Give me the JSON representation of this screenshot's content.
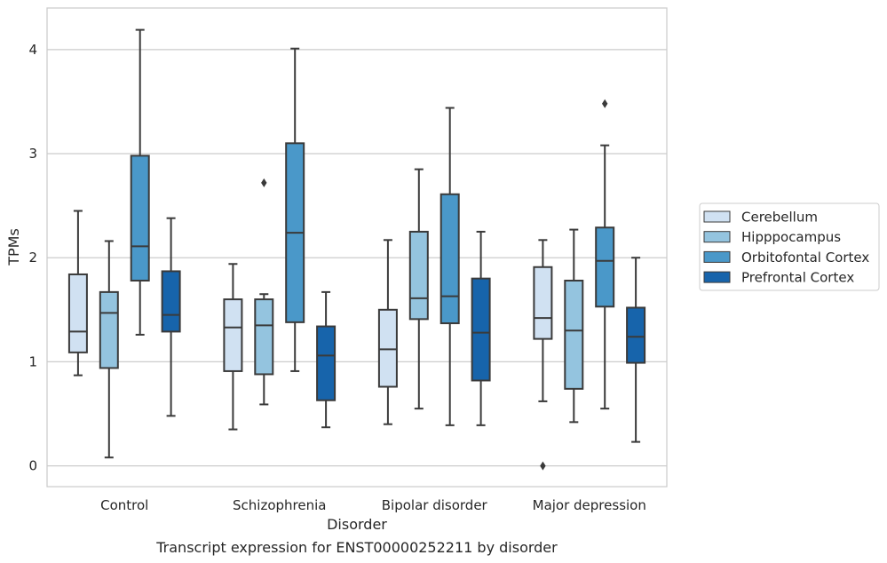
{
  "caption": "Transcript expression for ENST00000252211 by disorder",
  "chart_data": {
    "type": "box",
    "title": "",
    "xlabel": "Disorder",
    "ylabel": "TPMs",
    "ylim": [
      -0.2,
      4.4
    ],
    "yticks": [
      0,
      1,
      2,
      3,
      4
    ],
    "grid": "horizontal",
    "legend_position": "right",
    "categories": [
      "Control",
      "Schizophrenia",
      "Bipolar disorder",
      "Major depression"
    ],
    "series": [
      {
        "name": "Cerebellum",
        "color": "#d0e1f2",
        "boxes": [
          {
            "whislo": 0.87,
            "q1": 1.09,
            "med": 1.29,
            "q3": 1.84,
            "whishi": 2.45,
            "fliers": []
          },
          {
            "whislo": 0.35,
            "q1": 0.91,
            "med": 1.33,
            "q3": 1.6,
            "whishi": 1.94,
            "fliers": []
          },
          {
            "whislo": 0.4,
            "q1": 0.76,
            "med": 1.12,
            "q3": 1.5,
            "whishi": 2.17,
            "fliers": []
          },
          {
            "whislo": 0.62,
            "q1": 1.22,
            "med": 1.42,
            "q3": 1.91,
            "whishi": 2.17,
            "fliers": [
              0.0
            ]
          }
        ]
      },
      {
        "name": "Hipppocampus",
        "color": "#94c4df",
        "boxes": [
          {
            "whislo": 0.08,
            "q1": 0.94,
            "med": 1.47,
            "q3": 1.67,
            "whishi": 2.16,
            "fliers": []
          },
          {
            "whislo": 0.59,
            "q1": 0.88,
            "med": 1.35,
            "q3": 1.6,
            "whishi": 1.65,
            "fliers": [
              2.72
            ]
          },
          {
            "whislo": 0.55,
            "q1": 1.41,
            "med": 1.61,
            "q3": 2.25,
            "whishi": 2.85,
            "fliers": []
          },
          {
            "whislo": 0.42,
            "q1": 0.74,
            "med": 1.3,
            "q3": 1.78,
            "whishi": 2.27,
            "fliers": []
          }
        ]
      },
      {
        "name": "Orbitofontal Cortex",
        "color": "#4a98c9",
        "boxes": [
          {
            "whislo": 1.26,
            "q1": 1.78,
            "med": 2.11,
            "q3": 2.98,
            "whishi": 4.19,
            "fliers": []
          },
          {
            "whislo": 0.91,
            "q1": 1.38,
            "med": 2.24,
            "q3": 3.1,
            "whishi": 4.01,
            "fliers": []
          },
          {
            "whislo": 0.39,
            "q1": 1.37,
            "med": 1.63,
            "q3": 2.61,
            "whishi": 3.44,
            "fliers": []
          },
          {
            "whislo": 0.55,
            "q1": 1.53,
            "med": 1.97,
            "q3": 2.29,
            "whishi": 3.08,
            "fliers": [
              3.48
            ]
          }
        ]
      },
      {
        "name": "Prefrontal Cortex",
        "color": "#1764ab",
        "boxes": [
          {
            "whislo": 0.48,
            "q1": 1.29,
            "med": 1.45,
            "q3": 1.87,
            "whishi": 2.38,
            "fliers": []
          },
          {
            "whislo": 0.37,
            "q1": 0.63,
            "med": 1.06,
            "q3": 1.34,
            "whishi": 1.67,
            "fliers": []
          },
          {
            "whislo": 0.39,
            "q1": 0.82,
            "med": 1.28,
            "q3": 1.8,
            "whishi": 2.25,
            "fliers": []
          },
          {
            "whislo": 0.23,
            "q1": 0.99,
            "med": 1.24,
            "q3": 1.52,
            "whishi": 2.0,
            "fliers": []
          }
        ]
      }
    ]
  }
}
